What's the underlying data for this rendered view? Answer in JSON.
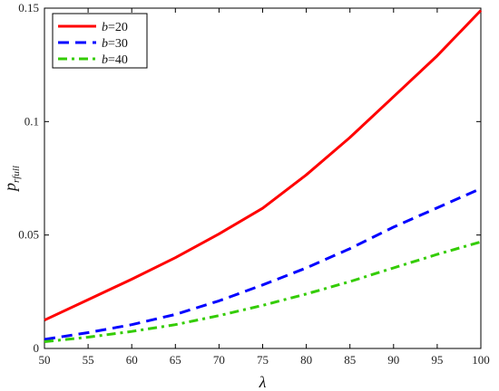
{
  "chart_data": {
    "type": "line",
    "title": "",
    "xlabel": "λ",
    "ylabel": {
      "base": "p",
      "sub": "rfull"
    },
    "xlim": [
      50,
      100
    ],
    "ylim": [
      0,
      0.15
    ],
    "xticks": [
      50,
      55,
      60,
      65,
      70,
      75,
      80,
      85,
      90,
      95,
      100
    ],
    "yticks": [
      0,
      0.05,
      0.1,
      0.15
    ],
    "ytick_labels": [
      "0",
      "0.05",
      "0.1",
      "0.15"
    ],
    "grid": false,
    "legend_position": "top-left",
    "series": [
      {
        "name": "b=20",
        "name_var": "b",
        "name_value": "=20",
        "color": "#ff0000",
        "style": "solid",
        "x": [
          50,
          55,
          60,
          65,
          70,
          75,
          80,
          85,
          90,
          95,
          100
        ],
        "y": [
          0.0125,
          0.0215,
          0.0305,
          0.04,
          0.0505,
          0.0618,
          0.0765,
          0.093,
          0.111,
          0.129,
          0.149
        ]
      },
      {
        "name": "b=30",
        "name_var": "b",
        "name_value": "=30",
        "color": "#0000ff",
        "style": "dashed",
        "x": [
          50,
          55,
          60,
          65,
          70,
          75,
          80,
          85,
          90,
          95,
          100
        ],
        "y": [
          0.004,
          0.007,
          0.0105,
          0.015,
          0.021,
          0.028,
          0.0355,
          0.044,
          0.0535,
          0.062,
          0.0705
        ]
      },
      {
        "name": "b=40",
        "name_var": "b",
        "name_value": "=40",
        "color": "#33cc00",
        "style": "dashdot",
        "x": [
          50,
          55,
          60,
          65,
          70,
          75,
          80,
          85,
          90,
          95,
          100
        ],
        "y": [
          0.003,
          0.005,
          0.0075,
          0.0105,
          0.0145,
          0.019,
          0.024,
          0.0295,
          0.0355,
          0.0415,
          0.047
        ]
      }
    ]
  }
}
